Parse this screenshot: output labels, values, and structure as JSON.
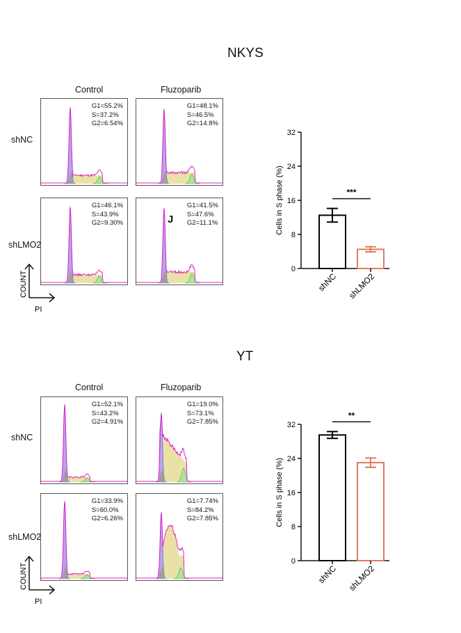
{
  "figure": {
    "sections": [
      {
        "title": "NKYS",
        "col_labels": [
          "Control",
          "Fluzoparib"
        ],
        "row_labels": [
          "shNC",
          "shLMO2"
        ],
        "panels": [
          {
            "G1": "G1=55.2%",
            "S": "S=37.2%",
            "G2": "G2=6.54%"
          },
          {
            "G1": "G1=48.1%",
            "S": "S=46.5%",
            "G2": "G2=14.8%"
          },
          {
            "G1": "G1=46.1%",
            "S": "S=43.9%",
            "G2": "G2=9.30%"
          },
          {
            "G1": "G1=41.5%",
            "S": "S=47.6%",
            "G2": "G2=11.1%"
          }
        ],
        "axis_y": "COUNT",
        "axis_x": "PI",
        "stray_mark": "J"
      },
      {
        "title": "YT",
        "col_labels": [
          "Control",
          "Fluzoparib"
        ],
        "row_labels": [
          "shNC",
          "shLMO2"
        ],
        "panels": [
          {
            "G1": "G1=52.1%",
            "S": "S=43.2%",
            "G2": "G2=4.91%"
          },
          {
            "G1": "G1=19.0%",
            "S": "S=73.1%",
            "G2": "G2=7.85%"
          },
          {
            "G1": "G1=33.9%",
            "S": "S=60.0%",
            "G2": "G2=6.26%"
          },
          {
            "G1": "G1=7.74%",
            "S": "S=84.2%",
            "G2": "G2=7.85%"
          }
        ],
        "axis_y": "COUNT",
        "axis_x": "PI"
      }
    ]
  },
  "chart_data": [
    {
      "type": "bar",
      "title": "NKYS",
      "categories": [
        "shNC",
        "shLMO2"
      ],
      "values": [
        12.5,
        4.5
      ],
      "errors": [
        1.6,
        0.6
      ],
      "ylabel": "Cells in S phase (%)",
      "ylim": [
        0,
        32
      ],
      "yticks": [
        "0",
        "8",
        "16",
        "24",
        "32"
      ],
      "significance": "***",
      "bar_colors": [
        "#000000",
        "#e07a5f"
      ]
    },
    {
      "type": "bar",
      "title": "YT",
      "categories": [
        "shNC",
        "shLMO2"
      ],
      "values": [
        29.5,
        23.0
      ],
      "errors": [
        0.8,
        1.1
      ],
      "ylabel": "Cells in S phase (%)",
      "ylim": [
        0,
        32
      ],
      "yticks": [
        "0",
        "8",
        "16",
        "24",
        "32"
      ],
      "significance": "**",
      "bar_colors": [
        "#000000",
        "#e07a5f"
      ]
    }
  ]
}
